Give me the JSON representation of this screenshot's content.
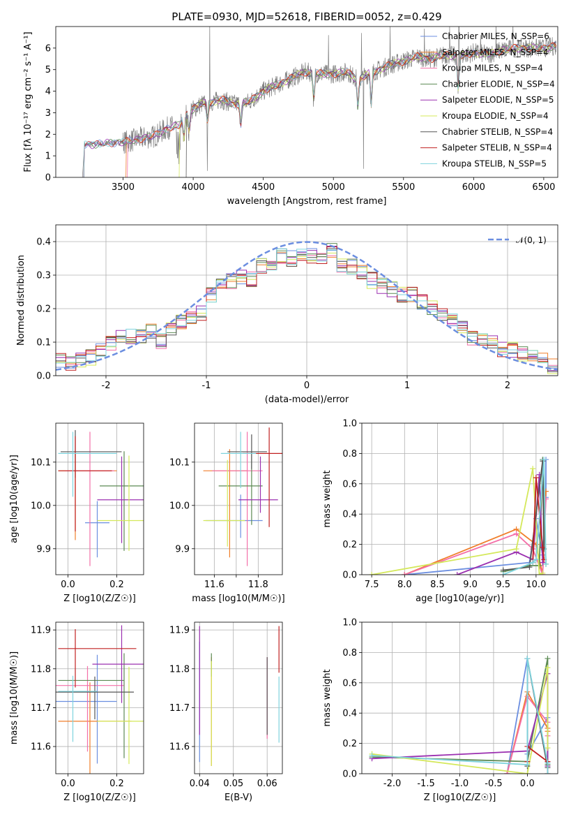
{
  "figure_title": "PLATE=0930, MJD=52618, FIBERID=0052, z=0.429",
  "colors": [
    "#6b8ee0",
    "#f07e2a",
    "#f46fa8",
    "#5c8a53",
    "#9b30b0",
    "#d4e85a",
    "#555555",
    "#c02020",
    "#7ed3dd"
  ],
  "spec_colors": [
    "#6b8ee0",
    "#f07e2a",
    "#f46fa8",
    "#5c8a53",
    "#9b30b0",
    "#d4e85a",
    "#555555",
    "#c02020",
    "#7ed3dd",
    "#7f7f7f"
  ],
  "chart_data": [
    {
      "id": "spectrum",
      "type": "line",
      "title": "PLATE=0930, MJD=52618, FIBERID=0052, z=0.429",
      "xlabel": "wavelength [Angstrom, rest frame]",
      "ylabel": "Flux [fλ 10⁻¹⁷ erg cm⁻² s⁻¹ A⁻¹]",
      "xlim": [
        3020,
        6600
      ],
      "ylim": [
        0,
        7
      ],
      "xticks": [
        3500,
        4000,
        4500,
        5000,
        5500,
        6000,
        6500
      ],
      "yticks": [
        0,
        1,
        2,
        3,
        4,
        5,
        6
      ],
      "continuum_anchors": [
        [
          3220,
          1.5
        ],
        [
          3320,
          1.55
        ],
        [
          3420,
          1.6
        ],
        [
          3520,
          1.65
        ],
        [
          3620,
          1.8
        ],
        [
          3720,
          1.9
        ],
        [
          3820,
          2.3
        ],
        [
          3900,
          2.4
        ],
        [
          3960,
          3.0
        ],
        [
          4060,
          3.4
        ],
        [
          4200,
          3.6
        ],
        [
          4300,
          3.4
        ],
        [
          4400,
          3.5
        ],
        [
          4500,
          4.0
        ],
        [
          4600,
          4.3
        ],
        [
          4700,
          4.6
        ],
        [
          4800,
          4.9
        ],
        [
          4900,
          4.8
        ],
        [
          5000,
          4.8
        ],
        [
          5100,
          4.9
        ],
        [
          5180,
          4.5
        ],
        [
          5250,
          4.8
        ],
        [
          5400,
          5.2
        ],
        [
          5500,
          5.4
        ],
        [
          5600,
          5.6
        ],
        [
          5700,
          5.5
        ],
        [
          5800,
          5.7
        ],
        [
          5900,
          5.6
        ],
        [
          6000,
          5.8
        ],
        [
          6100,
          5.7
        ],
        [
          6200,
          5.9
        ],
        [
          6300,
          6.0
        ],
        [
          6400,
          6.0
        ],
        [
          6500,
          6.0
        ],
        [
          6580,
          6.1
        ]
      ],
      "series": [
        {
          "name": "Chabrier MILES, N_SSP=6"
        },
        {
          "name": "Salpeter MILES, N_SSP=4"
        },
        {
          "name": "Kroupa MILES, N_SSP=4"
        },
        {
          "name": "Chabrier ELODIE, N_SSP=4"
        },
        {
          "name": "Salpeter ELODIE, N_SSP=5"
        },
        {
          "name": "Kroupa ELODIE, N_SSP=4"
        },
        {
          "name": "Chabrier STELIB, N_SSP=4"
        },
        {
          "name": "Salpeter STELIB, N_SSP=4"
        },
        {
          "name": "Kroupa STELIB, N_SSP=5"
        }
      ],
      "legend": "upper right"
    },
    {
      "id": "residuals",
      "type": "line",
      "xlabel": "(data-model)/error",
      "ylabel": "Normed distribution",
      "xlim": [
        -2.5,
        2.5
      ],
      "ylim": [
        0,
        0.45
      ],
      "xticks": [
        -2,
        -1,
        0,
        1,
        2
      ],
      "yticks": [
        0.0,
        0.1,
        0.2,
        0.3,
        0.4
      ],
      "bin_width": 0.1,
      "reference": {
        "name": "𝒩(0, 1)",
        "type": "gaussian",
        "mu": 0,
        "sigma": 1
      },
      "hist_centers": [
        -2.45,
        -2.35,
        -2.25,
        -2.15,
        -2.05,
        -1.95,
        -1.85,
        -1.75,
        -1.65,
        -1.55,
        -1.45,
        -1.35,
        -1.25,
        -1.15,
        -1.05,
        -0.95,
        -0.85,
        -0.75,
        -0.65,
        -0.55,
        -0.45,
        -0.35,
        -0.25,
        -0.15,
        -0.05,
        0.05,
        0.15,
        0.25,
        0.35,
        0.45,
        0.55,
        0.65,
        0.75,
        0.85,
        0.95,
        1.05,
        1.15,
        1.25,
        1.35,
        1.45,
        1.55,
        1.65,
        1.75,
        1.85,
        1.95,
        2.05,
        2.15,
        2.25,
        2.35,
        2.45
      ],
      "hist_values": [
        0.05,
        0.035,
        0.045,
        0.055,
        0.075,
        0.095,
        0.11,
        0.115,
        0.12,
        0.13,
        0.105,
        0.145,
        0.16,
        0.18,
        0.185,
        0.24,
        0.27,
        0.28,
        0.29,
        0.285,
        0.33,
        0.34,
        0.355,
        0.35,
        0.36,
        0.36,
        0.355,
        0.37,
        0.33,
        0.325,
        0.31,
        0.285,
        0.27,
        0.26,
        0.24,
        0.245,
        0.22,
        0.2,
        0.18,
        0.16,
        0.14,
        0.115,
        0.11,
        0.095,
        0.08,
        0.075,
        0.065,
        0.055,
        0.045,
        0.03
      ],
      "legend": "upper right"
    },
    {
      "id": "age-vs-Z",
      "type": "scatter",
      "xlabel": "Z [log10(Z/Z☉)]",
      "ylabel": "age  [log10(age/yr)]",
      "xlim": [
        -0.05,
        0.31
      ],
      "ylim": [
        9.84,
        10.19
      ],
      "xticks": [
        0.0,
        0.2
      ],
      "yticks": [
        9.9,
        10.0,
        10.1
      ],
      "points": [
        {
          "x": 0.12,
          "y": 9.96,
          "xerr": [
            0.05,
            0.05
          ],
          "yerr": [
            0.08,
            0.05
          ]
        },
        {
          "x": 0.03,
          "y": 10.08,
          "xerr": [
            0.07,
            0.17
          ],
          "yerr": [
            0.16,
            0.04
          ]
        },
        {
          "x": 0.09,
          "y": 10.08,
          "xerr": [
            0.1,
            0.1
          ],
          "yerr": [
            0.22,
            0.09
          ]
        },
        {
          "x": 0.23,
          "y": 10.045,
          "xerr": [
            0.1,
            0.08
          ],
          "yerr": [
            0.15,
            0.08
          ]
        },
        {
          "x": 0.22,
          "y": 10.013,
          "xerr": [
            0.1,
            0.09
          ],
          "yerr": [
            0.1,
            0.1
          ]
        },
        {
          "x": 0.25,
          "y": 9.965,
          "xerr": [
            0.13,
            0.06
          ],
          "yerr": [
            0.07,
            0.15
          ]
        },
        {
          "x": 0.03,
          "y": 10.124,
          "xerr": [
            0.06,
            0.19
          ],
          "yerr": [
            0.06,
            0.05
          ]
        },
        {
          "x": 0.03,
          "y": 10.08,
          "xerr": [
            0.07,
            0.15
          ],
          "yerr": [
            0.14,
            0.08
          ]
        },
        {
          "x": 0.02,
          "y": 10.12,
          "xerr": [
            0.06,
            0.18
          ],
          "yerr": [
            0.1,
            0.05
          ]
        }
      ]
    },
    {
      "id": "age-vs-mass",
      "type": "scatter",
      "xlabel": "mass [log10(M/M☉)]",
      "ylabel": "",
      "xlim": [
        11.51,
        11.91
      ],
      "ylim": [
        9.84,
        10.19
      ],
      "xticks": [
        11.6,
        11.7,
        11.8
      ],
      "xtick_labels": [
        "11.6",
        "",
        "11.8"
      ],
      "yticks": [
        9.9,
        10.0,
        10.1
      ],
      "points": [
        {
          "x": 11.72,
          "y": 9.965,
          "xerr": [
            0.16,
            0.1
          ],
          "yerr": [
            0.04,
            0.06
          ]
        },
        {
          "x": 11.67,
          "y": 10.08,
          "xerr": [
            0.12,
            0.08
          ],
          "yerr": [
            0.2,
            0.05
          ]
        },
        {
          "x": 11.75,
          "y": 10.08,
          "xerr": [
            0.16,
            0.07
          ],
          "yerr": [
            0.22,
            0.09
          ]
        },
        {
          "x": 11.77,
          "y": 10.045,
          "xerr": [
            0.15,
            0.05
          ],
          "yerr": [
            0.09,
            0.08
          ]
        },
        {
          "x": 11.81,
          "y": 10.013,
          "xerr": [
            0.1,
            0.08
          ],
          "yerr": [
            0.03,
            0.1
          ]
        },
        {
          "x": 11.66,
          "y": 9.965,
          "xerr": [
            0.11,
            0.08
          ],
          "yerr": [
            0.06,
            0.14
          ]
        },
        {
          "x": 11.77,
          "y": 10.124,
          "xerr": [
            0.11,
            0.07
          ],
          "yerr": [
            0.04,
            0.04
          ]
        },
        {
          "x": 11.85,
          "y": 10.12,
          "xerr": [
            0.12,
            0.06
          ],
          "yerr": [
            0.17,
            0.06
          ]
        },
        {
          "x": 11.72,
          "y": 10.12,
          "xerr": [
            0.09,
            0.07
          ],
          "yerr": [
            0.08,
            0.05
          ]
        }
      ]
    },
    {
      "id": "weight-vs-age",
      "type": "line",
      "xlabel": "age  [log10(age/yr)]",
      "ylabel": "mass weight",
      "xlim": [
        7.35,
        10.33
      ],
      "ylim": [
        0,
        1
      ],
      "xticks": [
        7.5,
        8.0,
        8.5,
        9.0,
        9.5,
        10.0
      ],
      "yticks": [
        0.0,
        0.2,
        0.4,
        0.6,
        0.8,
        1.0
      ],
      "series": [
        {
          "x": [
            8.0,
            9.9,
            10.0,
            10.1,
            10.15,
            10.15
          ],
          "y": [
            0.0,
            0.08,
            0.37,
            0.13,
            0.51,
            0.76
          ]
        },
        {
          "x": [
            8.0,
            9.7,
            10.0,
            10.1,
            10.15
          ],
          "y": [
            0.0,
            0.3,
            0.2,
            0.0,
            0.55
          ]
        },
        {
          "x": [
            8.0,
            9.7,
            9.95,
            10.1,
            10.15
          ],
          "y": [
            0.0,
            0.27,
            0.17,
            0.0,
            0.5
          ]
        },
        {
          "x": [
            9.5,
            9.9,
            10.05,
            10.1,
            10.15
          ],
          "y": [
            0.02,
            0.06,
            0.06,
            0.76,
            0.07
          ]
        },
        {
          "x": [
            8.8,
            9.7,
            9.95,
            10.05,
            10.1
          ],
          "y": [
            0.0,
            0.15,
            0.1,
            0.66,
            0.08
          ]
        },
        {
          "x": [
            7.5,
            9.7,
            9.95,
            10.05,
            10.1
          ],
          "y": [
            0.0,
            0.17,
            0.7,
            0.0,
            0.01
          ]
        },
        {
          "x": [
            9.5,
            9.9,
            10.1,
            10.12
          ],
          "y": [
            0.03,
            0.05,
            0.75,
            0.17
          ]
        },
        {
          "x": [
            9.95,
            10.0,
            10.1,
            10.12
          ],
          "y": [
            0.08,
            0.64,
            0.18,
            0.1
          ]
        },
        {
          "x": [
            9.5,
            9.95,
            10.0,
            10.12,
            10.15
          ],
          "y": [
            0.0,
            0.08,
            0.1,
            0.76,
            0.07
          ]
        }
      ]
    },
    {
      "id": "mass-vs-Z",
      "type": "scatter",
      "xlabel": "Z [log10(Z/Z☉)]",
      "ylabel": "mass [log10(M/M☉)]",
      "xlim": [
        -0.05,
        0.31
      ],
      "ylim": [
        11.53,
        11.92
      ],
      "xticks": [
        0.0,
        0.2
      ],
      "yticks": [
        11.6,
        11.7,
        11.8,
        11.9
      ],
      "points": [
        {
          "x": 0.12,
          "y": 11.716,
          "xerr": [
            0.17,
            0.08
          ],
          "yerr": [
            0.16,
            0.12
          ]
        },
        {
          "x": 0.09,
          "y": 11.665,
          "xerr": [
            0.13,
            0.17
          ],
          "yerr": [
            0.14,
            0.1
          ]
        },
        {
          "x": 0.08,
          "y": 11.757,
          "xerr": [
            0.13,
            0.15
          ],
          "yerr": [
            0.17,
            0.05
          ]
        },
        {
          "x": 0.23,
          "y": 11.77,
          "xerr": [
            0.27,
            0.0
          ],
          "yerr": [
            0.2,
            0.07
          ]
        },
        {
          "x": 0.22,
          "y": 11.812,
          "xerr": [
            0.12,
            0.09
          ],
          "yerr": [
            0.1,
            0.1
          ]
        },
        {
          "x": 0.25,
          "y": 11.665,
          "xerr": [
            0.13,
            0.06
          ],
          "yerr": [
            0.11,
            0.14
          ]
        },
        {
          "x": 0.11,
          "y": 11.74,
          "xerr": [
            0.17,
            0.16
          ],
          "yerr": [
            0.07,
            0.04
          ]
        },
        {
          "x": 0.03,
          "y": 11.852,
          "xerr": [
            0.07,
            0.25
          ],
          "yerr": [
            0.1,
            0.05
          ]
        },
        {
          "x": 0.02,
          "y": 11.742,
          "xerr": [
            0.06,
            0.1
          ],
          "yerr": [
            0.13,
            0.04
          ]
        }
      ]
    },
    {
      "id": "mass-vs-EBV",
      "type": "scatter",
      "xlabel": "E(B-V)",
      "ylabel": "",
      "xlim": [
        0.0385,
        0.0645
      ],
      "ylim": [
        11.53,
        11.92
      ],
      "xticks": [
        0.04,
        0.05,
        0.06
      ],
      "xtick_labels": [
        "0.04",
        "0.05",
        "0.06"
      ],
      "yticks": [
        11.6,
        11.7,
        11.8,
        11.9
      ],
      "points": [
        {
          "x": 0.04,
          "y": 11.72,
          "xerr": [
            0,
            0
          ],
          "yerr": [
            0.16,
            0.15
          ]
        },
        {
          "x": 0.0435,
          "y": 11.69,
          "xerr": [
            0,
            0
          ],
          "yerr": [
            0.14,
            0.14
          ]
        },
        {
          "x": 0.06,
          "y": 11.72,
          "xerr": [
            0,
            0
          ],
          "yerr": [
            0.1,
            0.11
          ]
        },
        {
          "x": 0.0435,
          "y": 11.83,
          "xerr": [
            0,
            0
          ],
          "yerr": [
            0.05,
            0.01
          ]
        },
        {
          "x": 0.04,
          "y": 11.77,
          "xerr": [
            0,
            0
          ],
          "yerr": [
            0.14,
            0.14
          ]
        },
        {
          "x": 0.0435,
          "y": 11.68,
          "xerr": [
            0,
            0
          ],
          "yerr": [
            0.13,
            0.14
          ]
        },
        {
          "x": 0.06,
          "y": 11.72,
          "xerr": [
            0,
            0
          ],
          "yerr": [
            0.09,
            0.11
          ]
        },
        {
          "x": 0.0635,
          "y": 11.85,
          "xerr": [
            0,
            0
          ],
          "yerr": [
            0.06,
            0.06
          ]
        },
        {
          "x": 0.0635,
          "y": 11.74,
          "xerr": [
            0,
            0
          ],
          "yerr": [
            0.13,
            0.04
          ]
        }
      ]
    },
    {
      "id": "weight-vs-Z",
      "type": "line",
      "xlabel": "Z [log10(Z/Z☉)]",
      "ylabel": "mass weight",
      "xlim": [
        -2.45,
        0.45
      ],
      "ylim": [
        0,
        1
      ],
      "xticks": [
        -2.0,
        -1.5,
        -1.0,
        -0.5,
        0.0
      ],
      "yticks": [
        0.0,
        0.2,
        0.4,
        0.6,
        0.8,
        1.0
      ],
      "series": [
        {
          "x": [
            -0.3,
            0.0,
            0.0,
            0.3,
            0.3
          ],
          "y": [
            0.0,
            0.76,
            0.13,
            0.37,
            0.08
          ]
        },
        {
          "x": [
            -0.3,
            0.0,
            0.3,
            0.3
          ],
          "y": [
            0.0,
            0.54,
            0.3,
            0.28
          ]
        },
        {
          "x": [
            -0.3,
            0.0,
            0.3,
            0.3
          ],
          "y": [
            0.0,
            0.51,
            0.34,
            0.25
          ]
        },
        {
          "x": [
            -2.3,
            0.0,
            0.3,
            0.3
          ],
          "y": [
            0.11,
            0.08,
            0.76,
            0.06
          ]
        },
        {
          "x": [
            -2.3,
            0.0,
            0.3,
            0.3
          ],
          "y": [
            0.1,
            0.15,
            0.66,
            0.05
          ]
        },
        {
          "x": [
            -2.3,
            0.0,
            0.3,
            0.3
          ],
          "y": [
            0.13,
            0.0,
            0.7,
            0.17
          ]
        },
        {
          "x": [
            0.0,
            0.0,
            0.3
          ],
          "y": [
            0.05,
            0.76,
            0.04
          ]
        },
        {
          "x": [
            0.0,
            0.0,
            0.3,
            0.3
          ],
          "y": [
            0.08,
            0.18,
            0.08,
            0.0
          ]
        },
        {
          "x": [
            -2.3,
            0.0,
            0.0,
            0.3,
            0.3
          ],
          "y": [
            0.12,
            0.06,
            0.76,
            0.07,
            0.0
          ]
        }
      ]
    }
  ]
}
